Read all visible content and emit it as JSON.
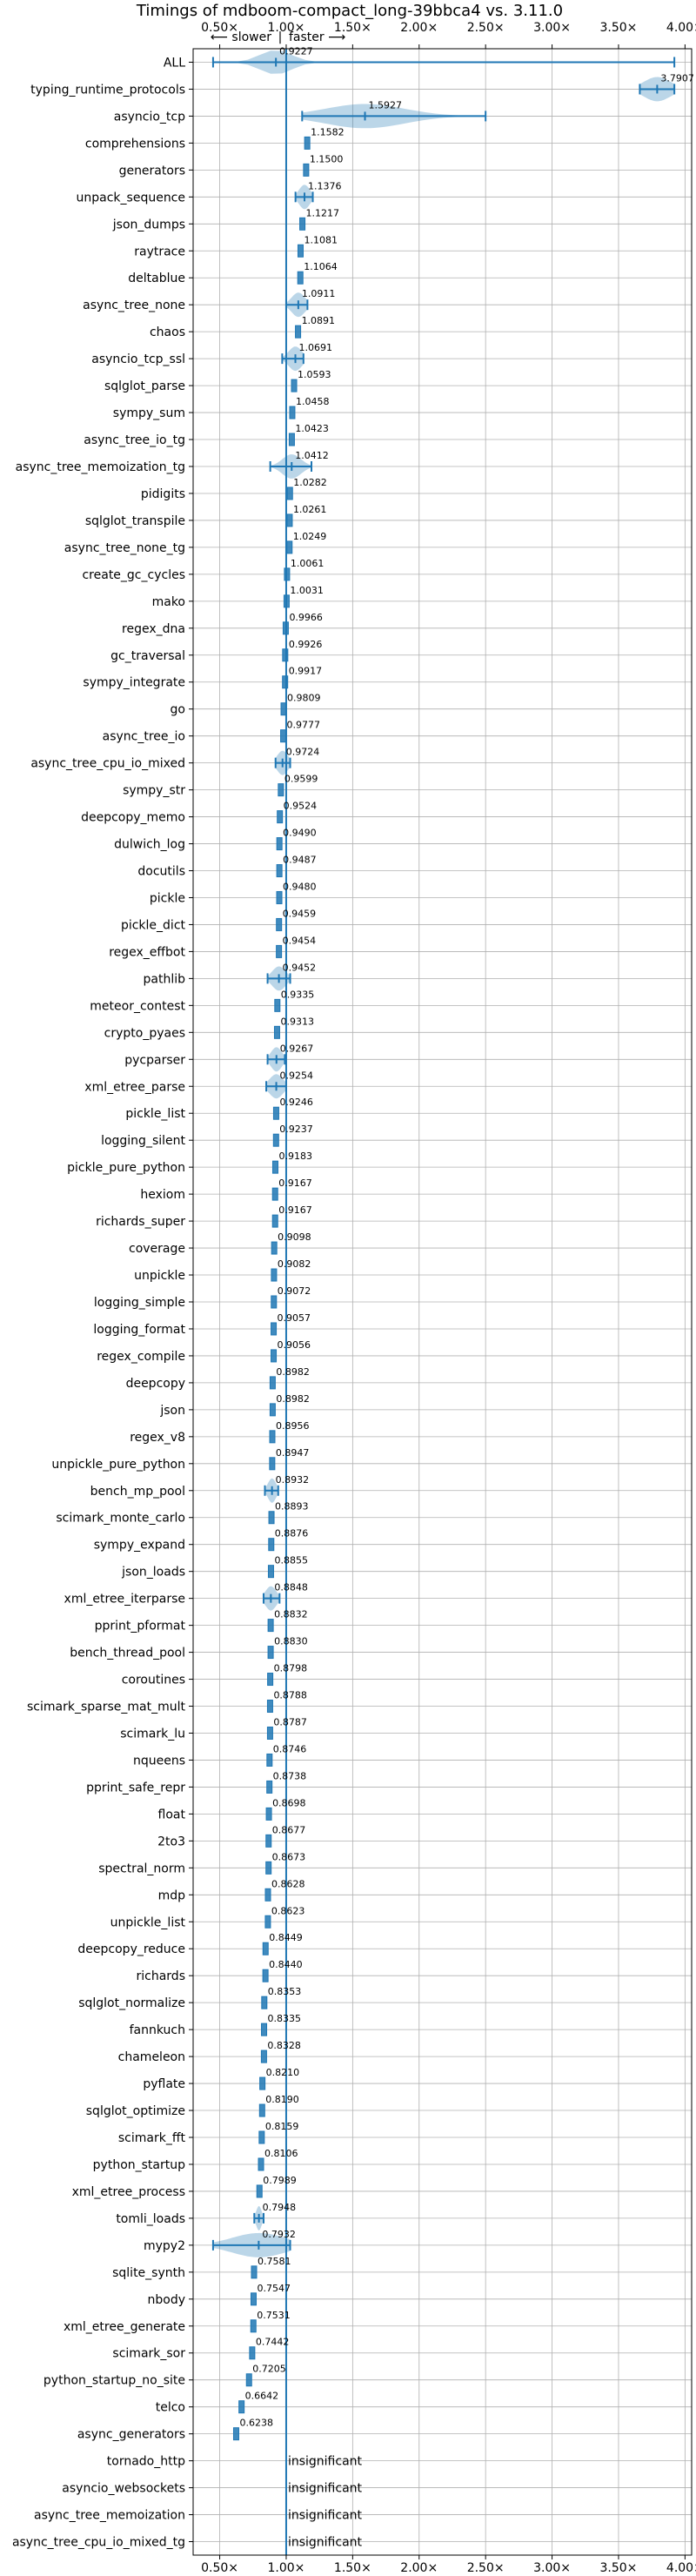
{
  "chart_data": {
    "type": "violin",
    "title": "Timings of mdboom-compact_long-39bbca4 vs. 3.11.0",
    "hint_slower": "⟵ slower",
    "hint_sep": "|",
    "hint_faster": "faster ⟶",
    "xlim": [
      0.3,
      4.05
    ],
    "xticks": [
      0.5,
      1.0,
      1.5,
      2.0,
      2.5,
      3.0,
      3.5,
      4.0
    ],
    "xtick_labels": [
      "0.50×",
      "1.00×",
      "1.50×",
      "2.00×",
      "2.50×",
      "3.00×",
      "3.50×",
      "4.00×"
    ],
    "baseline": 1.0,
    "insignificant_label": "insignificant",
    "accent_color": "#1f77b4",
    "benchmarks": [
      {
        "name": "ALL",
        "value": 0.9227,
        "label": "0.9227",
        "min": 0.45,
        "max": 3.92,
        "kind": "violin",
        "spread": 0.12
      },
      {
        "name": "typing_runtime_protocols",
        "value": 3.7907,
        "label": "3.7907",
        "min": 3.66,
        "max": 3.92,
        "kind": "violin",
        "spread": 0.1
      },
      {
        "name": "asyncio_tcp",
        "value": 1.5927,
        "label": "1.5927",
        "min": 1.12,
        "max": 2.5,
        "kind": "violin",
        "spread": 0.3
      },
      {
        "name": "comprehensions",
        "value": 1.1582,
        "label": "1.1582",
        "kind": "box"
      },
      {
        "name": "generators",
        "value": 1.15,
        "label": "1.1500",
        "kind": "box"
      },
      {
        "name": "unpack_sequence",
        "value": 1.1376,
        "label": "1.1376",
        "min": 1.07,
        "max": 1.2,
        "kind": "violin",
        "spread": 0.04
      },
      {
        "name": "json_dumps",
        "value": 1.1217,
        "label": "1.1217",
        "kind": "box"
      },
      {
        "name": "raytrace",
        "value": 1.1081,
        "label": "1.1081",
        "kind": "box"
      },
      {
        "name": "deltablue",
        "value": 1.1064,
        "label": "1.1064",
        "kind": "box"
      },
      {
        "name": "async_tree_none",
        "value": 1.0911,
        "label": "1.0911",
        "min": 1.0,
        "max": 1.16,
        "kind": "violin",
        "spread": 0.05
      },
      {
        "name": "chaos",
        "value": 1.0891,
        "label": "1.0891",
        "kind": "box"
      },
      {
        "name": "asyncio_tcp_ssl",
        "value": 1.0691,
        "label": "1.0691",
        "min": 0.97,
        "max": 1.13,
        "kind": "violin",
        "spread": 0.05
      },
      {
        "name": "sqlglot_parse",
        "value": 1.0593,
        "label": "1.0593",
        "kind": "box"
      },
      {
        "name": "sympy_sum",
        "value": 1.0458,
        "label": "1.0458",
        "kind": "box"
      },
      {
        "name": "async_tree_io_tg",
        "value": 1.0423,
        "label": "1.0423",
        "kind": "box"
      },
      {
        "name": "async_tree_memoization_tg",
        "value": 1.0412,
        "label": "1.0412",
        "min": 0.88,
        "max": 1.19,
        "kind": "violin",
        "spread": 0.07
      },
      {
        "name": "pidigits",
        "value": 1.0282,
        "label": "1.0282",
        "kind": "box"
      },
      {
        "name": "sqlglot_transpile",
        "value": 1.0261,
        "label": "1.0261",
        "kind": "box"
      },
      {
        "name": "async_tree_none_tg",
        "value": 1.0249,
        "label": "1.0249",
        "kind": "box"
      },
      {
        "name": "create_gc_cycles",
        "value": 1.0061,
        "label": "1.0061",
        "kind": "box"
      },
      {
        "name": "mako",
        "value": 1.0031,
        "label": "1.0031",
        "kind": "box"
      },
      {
        "name": "regex_dna",
        "value": 0.9966,
        "label": "0.9966",
        "kind": "box"
      },
      {
        "name": "gc_traversal",
        "value": 0.9926,
        "label": "0.9926",
        "kind": "box"
      },
      {
        "name": "sympy_integrate",
        "value": 0.9917,
        "label": "0.9917",
        "kind": "box"
      },
      {
        "name": "go",
        "value": 0.9809,
        "label": "0.9809",
        "kind": "box"
      },
      {
        "name": "async_tree_io",
        "value": 0.9777,
        "label": "0.9777",
        "kind": "box"
      },
      {
        "name": "async_tree_cpu_io_mixed",
        "value": 0.9724,
        "label": "0.9724",
        "min": 0.92,
        "max": 1.03,
        "kind": "violin",
        "spread": 0.04
      },
      {
        "name": "sympy_str",
        "value": 0.9599,
        "label": "0.9599",
        "kind": "box"
      },
      {
        "name": "deepcopy_memo",
        "value": 0.9524,
        "label": "0.9524",
        "kind": "box"
      },
      {
        "name": "dulwich_log",
        "value": 0.949,
        "label": "0.9490",
        "kind": "box"
      },
      {
        "name": "docutils",
        "value": 0.9487,
        "label": "0.9487",
        "kind": "box"
      },
      {
        "name": "pickle",
        "value": 0.948,
        "label": "0.9480",
        "kind": "box"
      },
      {
        "name": "pickle_dict",
        "value": 0.9459,
        "label": "0.9459",
        "kind": "box"
      },
      {
        "name": "regex_effbot",
        "value": 0.9454,
        "label": "0.9454",
        "kind": "box"
      },
      {
        "name": "pathlib",
        "value": 0.9452,
        "label": "0.9452",
        "min": 0.86,
        "max": 1.03,
        "kind": "violin",
        "spread": 0.05
      },
      {
        "name": "meteor_contest",
        "value": 0.9335,
        "label": "0.9335",
        "kind": "box"
      },
      {
        "name": "crypto_pyaes",
        "value": 0.9313,
        "label": "0.9313",
        "kind": "box"
      },
      {
        "name": "pycparser",
        "value": 0.9267,
        "label": "0.9267",
        "min": 0.86,
        "max": 0.99,
        "kind": "violin",
        "spread": 0.04
      },
      {
        "name": "xml_etree_parse",
        "value": 0.9254,
        "label": "0.9254",
        "min": 0.85,
        "max": 1.0,
        "kind": "violin",
        "spread": 0.05
      },
      {
        "name": "pickle_list",
        "value": 0.9246,
        "label": "0.9246",
        "kind": "box"
      },
      {
        "name": "logging_silent",
        "value": 0.9237,
        "label": "0.9237",
        "kind": "box"
      },
      {
        "name": "pickle_pure_python",
        "value": 0.9183,
        "label": "0.9183",
        "kind": "box"
      },
      {
        "name": "hexiom",
        "value": 0.9167,
        "label": "0.9167",
        "kind": "box"
      },
      {
        "name": "richards_super",
        "value": 0.9167,
        "label": "0.9167",
        "kind": "box"
      },
      {
        "name": "coverage",
        "value": 0.9098,
        "label": "0.9098",
        "kind": "box"
      },
      {
        "name": "unpickle",
        "value": 0.9082,
        "label": "0.9082",
        "kind": "box"
      },
      {
        "name": "logging_simple",
        "value": 0.9072,
        "label": "0.9072",
        "kind": "box"
      },
      {
        "name": "logging_format",
        "value": 0.9057,
        "label": "0.9057",
        "kind": "box"
      },
      {
        "name": "regex_compile",
        "value": 0.9056,
        "label": "0.9056",
        "kind": "box"
      },
      {
        "name": "deepcopy",
        "value": 0.8982,
        "label": "0.8982",
        "kind": "box"
      },
      {
        "name": "json",
        "value": 0.8982,
        "label": "0.8982",
        "kind": "box"
      },
      {
        "name": "regex_v8",
        "value": 0.8956,
        "label": "0.8956",
        "kind": "box"
      },
      {
        "name": "unpickle_pure_python",
        "value": 0.8947,
        "label": "0.8947",
        "kind": "box"
      },
      {
        "name": "bench_mp_pool",
        "value": 0.8932,
        "label": "0.8932",
        "min": 0.84,
        "max": 0.94,
        "kind": "violin",
        "spread": 0.03
      },
      {
        "name": "scimark_monte_carlo",
        "value": 0.8893,
        "label": "0.8893",
        "kind": "box"
      },
      {
        "name": "sympy_expand",
        "value": 0.8876,
        "label": "0.8876",
        "kind": "box"
      },
      {
        "name": "json_loads",
        "value": 0.8855,
        "label": "0.8855",
        "kind": "box"
      },
      {
        "name": "xml_etree_iterparse",
        "value": 0.8848,
        "label": "0.8848",
        "min": 0.83,
        "max": 0.95,
        "kind": "violin",
        "spread": 0.04
      },
      {
        "name": "pprint_pformat",
        "value": 0.8832,
        "label": "0.8832",
        "kind": "box"
      },
      {
        "name": "bench_thread_pool",
        "value": 0.883,
        "label": "0.8830",
        "kind": "box"
      },
      {
        "name": "coroutines",
        "value": 0.8798,
        "label": "0.8798",
        "kind": "box"
      },
      {
        "name": "scimark_sparse_mat_mult",
        "value": 0.8788,
        "label": "0.8788",
        "kind": "box"
      },
      {
        "name": "scimark_lu",
        "value": 0.8787,
        "label": "0.8787",
        "kind": "box"
      },
      {
        "name": "nqueens",
        "value": 0.8746,
        "label": "0.8746",
        "kind": "box"
      },
      {
        "name": "pprint_safe_repr",
        "value": 0.8738,
        "label": "0.8738",
        "kind": "box"
      },
      {
        "name": "float",
        "value": 0.8698,
        "label": "0.8698",
        "kind": "box"
      },
      {
        "name": "2to3",
        "value": 0.8677,
        "label": "0.8677",
        "kind": "box"
      },
      {
        "name": "spectral_norm",
        "value": 0.8673,
        "label": "0.8673",
        "kind": "box"
      },
      {
        "name": "mdp",
        "value": 0.8628,
        "label": "0.8628",
        "kind": "box"
      },
      {
        "name": "unpickle_list",
        "value": 0.8623,
        "label": "0.8623",
        "kind": "box"
      },
      {
        "name": "deepcopy_reduce",
        "value": 0.8449,
        "label": "0.8449",
        "kind": "box"
      },
      {
        "name": "richards",
        "value": 0.844,
        "label": "0.8440",
        "kind": "box"
      },
      {
        "name": "sqlglot_normalize",
        "value": 0.8353,
        "label": "0.8353",
        "kind": "box"
      },
      {
        "name": "fannkuch",
        "value": 0.8335,
        "label": "0.8335",
        "kind": "box"
      },
      {
        "name": "chameleon",
        "value": 0.8328,
        "label": "0.8328",
        "kind": "box"
      },
      {
        "name": "pyflate",
        "value": 0.821,
        "label": "0.8210",
        "kind": "box"
      },
      {
        "name": "sqlglot_optimize",
        "value": 0.819,
        "label": "0.8190",
        "kind": "box"
      },
      {
        "name": "scimark_fft",
        "value": 0.8159,
        "label": "0.8159",
        "kind": "box"
      },
      {
        "name": "python_startup",
        "value": 0.8106,
        "label": "0.8106",
        "kind": "box"
      },
      {
        "name": "xml_etree_process",
        "value": 0.7989,
        "label": "0.7989",
        "kind": "box"
      },
      {
        "name": "tomli_loads",
        "value": 0.7948,
        "label": "0.7948",
        "min": 0.76,
        "max": 0.83,
        "kind": "violin",
        "spread": 0.02
      },
      {
        "name": "mypy2",
        "value": 0.7932,
        "label": "0.7932",
        "min": 0.45,
        "max": 1.03,
        "kind": "violin",
        "spread": 0.2
      },
      {
        "name": "sqlite_synth",
        "value": 0.7581,
        "label": "0.7581",
        "kind": "box"
      },
      {
        "name": "nbody",
        "value": 0.7547,
        "label": "0.7547",
        "kind": "box"
      },
      {
        "name": "xml_etree_generate",
        "value": 0.7531,
        "label": "0.7531",
        "kind": "box"
      },
      {
        "name": "scimark_sor",
        "value": 0.7442,
        "label": "0.7442",
        "kind": "box"
      },
      {
        "name": "python_startup_no_site",
        "value": 0.7205,
        "label": "0.7205",
        "kind": "box"
      },
      {
        "name": "telco",
        "value": 0.6642,
        "label": "0.6642",
        "kind": "box"
      },
      {
        "name": "async_generators",
        "value": 0.6238,
        "label": "0.6238",
        "kind": "box"
      },
      {
        "name": "tornado_http",
        "value": null,
        "label": "",
        "kind": "insignificant"
      },
      {
        "name": "asyncio_websockets",
        "value": null,
        "label": "",
        "kind": "insignificant"
      },
      {
        "name": "async_tree_memoization",
        "value": null,
        "label": "",
        "kind": "insignificant"
      },
      {
        "name": "async_tree_cpu_io_mixed_tg",
        "value": null,
        "label": "",
        "kind": "insignificant"
      }
    ]
  }
}
